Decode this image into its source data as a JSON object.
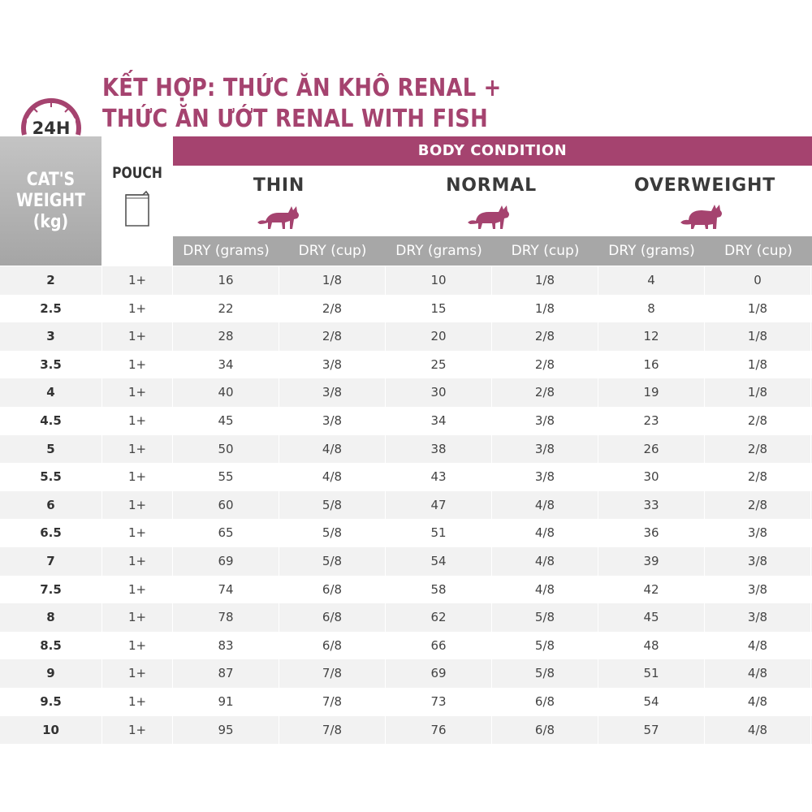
{
  "badge": {
    "label": "24H"
  },
  "title": {
    "line1": "KẾT HỢP: THỨC ĂN KHÔ RENAL +",
    "line2": "THỨC ĂN ƯỚT RENAL WITH FISH"
  },
  "accent_color": "#a5436f",
  "header": {
    "weight_label": "CAT'S\nWEIGHT\n(kg)",
    "pouch_label": "POUCH",
    "body_condition": "BODY CONDITION",
    "conditions": [
      "THIN",
      "NORMAL",
      "OVERWEIGHT"
    ],
    "subheaders": [
      "DRY (grams)",
      "DRY (cup)",
      "DRY (grams)",
      "DRY (cup)",
      "DRY (grams)",
      "DRY (cup)"
    ]
  },
  "icons": {
    "pouch": "pouch-icon",
    "cat": "cat-silhouette-icon",
    "clock": "clock-24h-icon"
  },
  "rows": [
    [
      "2",
      "1+",
      "16",
      "1/8",
      "10",
      "1/8",
      "4",
      "0"
    ],
    [
      "2.5",
      "1+",
      "22",
      "2/8",
      "15",
      "1/8",
      "8",
      "1/8"
    ],
    [
      "3",
      "1+",
      "28",
      "2/8",
      "20",
      "2/8",
      "12",
      "1/8"
    ],
    [
      "3.5",
      "1+",
      "34",
      "3/8",
      "25",
      "2/8",
      "16",
      "1/8"
    ],
    [
      "4",
      "1+",
      "40",
      "3/8",
      "30",
      "2/8",
      "19",
      "1/8"
    ],
    [
      "4.5",
      "1+",
      "45",
      "3/8",
      "34",
      "3/8",
      "23",
      "2/8"
    ],
    [
      "5",
      "1+",
      "50",
      "4/8",
      "38",
      "3/8",
      "26",
      "2/8"
    ],
    [
      "5.5",
      "1+",
      "55",
      "4/8",
      "43",
      "3/8",
      "30",
      "2/8"
    ],
    [
      "6",
      "1+",
      "60",
      "5/8",
      "47",
      "4/8",
      "33",
      "2/8"
    ],
    [
      "6.5",
      "1+",
      "65",
      "5/8",
      "51",
      "4/8",
      "36",
      "3/8"
    ],
    [
      "7",
      "1+",
      "69",
      "5/8",
      "54",
      "4/8",
      "39",
      "3/8"
    ],
    [
      "7.5",
      "1+",
      "74",
      "6/8",
      "58",
      "4/8",
      "42",
      "3/8"
    ],
    [
      "8",
      "1+",
      "78",
      "6/8",
      "62",
      "5/8",
      "45",
      "3/8"
    ],
    [
      "8.5",
      "1+",
      "83",
      "6/8",
      "66",
      "5/8",
      "48",
      "4/8"
    ],
    [
      "9",
      "1+",
      "87",
      "7/8",
      "69",
      "5/8",
      "51",
      "4/8"
    ],
    [
      "9.5",
      "1+",
      "91",
      "7/8",
      "73",
      "6/8",
      "54",
      "4/8"
    ],
    [
      "10",
      "1+",
      "95",
      "7/8",
      "76",
      "6/8",
      "57",
      "4/8"
    ]
  ]
}
